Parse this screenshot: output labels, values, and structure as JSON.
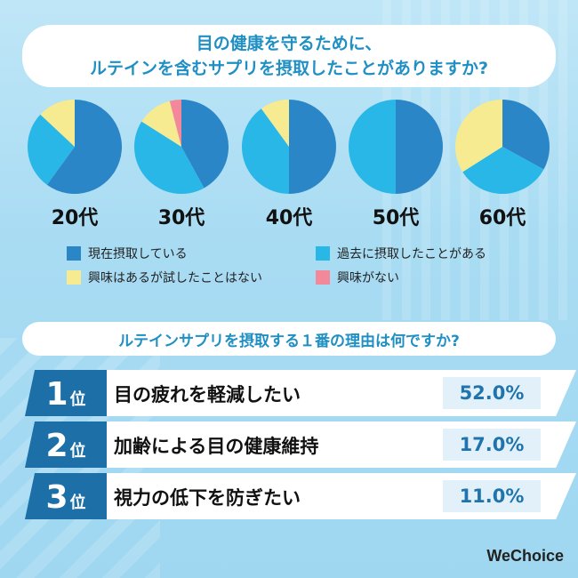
{
  "question1": {
    "line1": "目の健康を守るために、",
    "line2": "ルテインを含むサプリを摂取したことがありますか?"
  },
  "chart_data": {
    "type": "pie",
    "colors": {
      "current": "#2a86c6",
      "past": "#29b7e8",
      "interested": "#f6eb90",
      "not_interested": "#f2889a"
    },
    "legend": {
      "current": "現在摂取している",
      "past": "過去に摂取したことがある",
      "interested": "興味はあるが試したことはない",
      "not_interested": "興味がない"
    },
    "pies": [
      {
        "label": "20代",
        "values": {
          "current": 60,
          "past": 27,
          "interested": 13,
          "not_interested": 0
        }
      },
      {
        "label": "30代",
        "values": {
          "current": 42,
          "past": 42,
          "interested": 12,
          "not_interested": 4
        }
      },
      {
        "label": "40代",
        "values": {
          "current": 50,
          "past": 40,
          "interested": 10,
          "not_interested": 0
        }
      },
      {
        "label": "50代",
        "values": {
          "current": 50,
          "past": 50,
          "interested": 0,
          "not_interested": 0
        }
      },
      {
        "label": "60代",
        "values": {
          "current": 33,
          "past": 33,
          "interested": 34,
          "not_interested": 0
        }
      }
    ]
  },
  "question2": "ルテインサプリを摂取する１番の理由は何ですか?",
  "ranking": [
    {
      "num": "1",
      "suffix": "位",
      "label": "目の疲れを軽減したい",
      "pct": "52.0%"
    },
    {
      "num": "2",
      "suffix": "位",
      "label": "加齢による目の健康維持",
      "pct": "17.0%"
    },
    {
      "num": "3",
      "suffix": "位",
      "label": "視力の低下を防ぎたい",
      "pct": "11.0%"
    }
  ],
  "brand": "WeChoice"
}
